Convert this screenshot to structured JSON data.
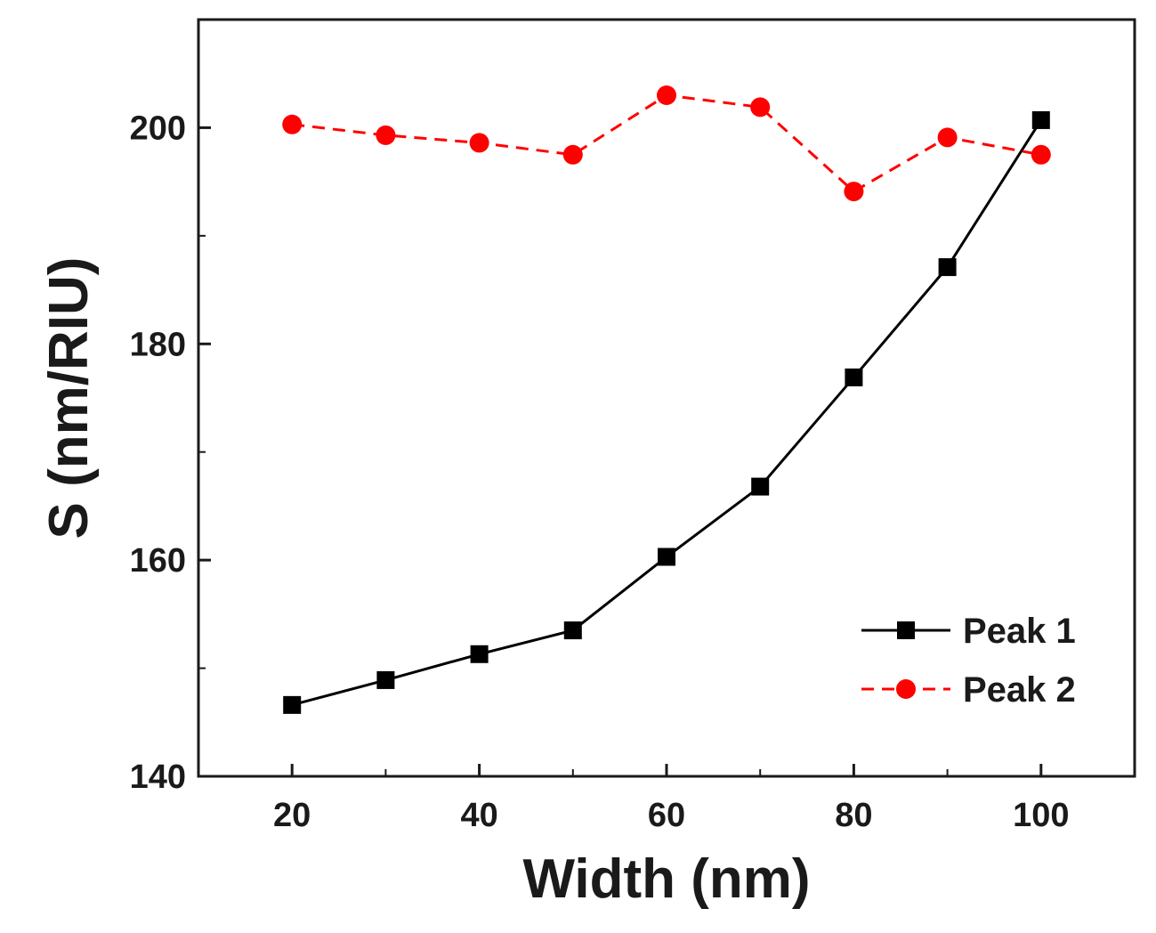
{
  "chart_data": {
    "type": "line",
    "title": "",
    "xlabel": "Width (nm)",
    "ylabel": "S (nm/RIU)",
    "xlim": [
      10,
      110
    ],
    "ylim": [
      140,
      210
    ],
    "xticks": [
      20,
      40,
      60,
      80,
      100
    ],
    "xtick_labels": [
      "20",
      "40",
      "60",
      "80",
      "100"
    ],
    "yticks": [
      140,
      160,
      180,
      200
    ],
    "ytick_labels": [
      "140",
      "160",
      "180",
      "200"
    ],
    "x": [
      20,
      30,
      40,
      50,
      60,
      70,
      80,
      90,
      100
    ],
    "grid": false,
    "legend_position": "bottom-right",
    "series": [
      {
        "name": "Peak 1",
        "values": [
          146.6,
          148.9,
          151.3,
          153.5,
          160.3,
          166.8,
          176.9,
          187.1,
          200.7
        ],
        "color": "#000000",
        "marker": "square",
        "line_style": "solid"
      },
      {
        "name": "Peak 2",
        "values": [
          200.3,
          199.3,
          198.6,
          197.5,
          203.0,
          201.9,
          194.1,
          199.1,
          197.5
        ],
        "color": "#ff0000",
        "marker": "circle",
        "line_style": "dashed"
      }
    ]
  }
}
